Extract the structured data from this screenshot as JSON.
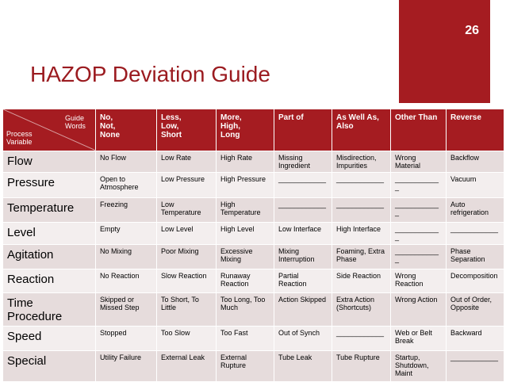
{
  "slide_number": "26",
  "title": "HAZOP Deviation Guide",
  "table": {
    "header": {
      "guide_words": "Guide Words",
      "process_variable": "Process Variable",
      "columns": [
        "No,\nNot,\nNone",
        "Less,\nLow,\nShort",
        "More,\nHigh,\nLong",
        "Part of",
        "As Well As,\nAlso",
        "Other Than",
        "Reverse"
      ]
    },
    "rows": [
      {
        "label": "Flow",
        "cells": [
          "No Flow",
          "Low Rate",
          "High Rate",
          "Missing Ingredient",
          "Misdirection, Impurities",
          "Wrong Material",
          "Backflow"
        ]
      },
      {
        "label": "Pressure",
        "cells": [
          "Open to Atmosphere",
          "Low Pressure",
          "High Pressure",
          "____________",
          "____________",
          "____________",
          "Vacuum"
        ]
      },
      {
        "label": "Temperature",
        "cells": [
          "Freezing",
          "Low Temperature",
          "High Temperature",
          "____________",
          "____________",
          "____________",
          "Auto refrigeration"
        ]
      },
      {
        "label": "Level",
        "cells": [
          "Empty",
          "Low Level",
          "High Level",
          "Low Interface",
          "High Interface",
          "____________",
          "____________"
        ]
      },
      {
        "label": "Agitation",
        "cells": [
          "No Mixing",
          "Poor Mixing",
          "Excessive Mixing",
          "Mixing Interruption",
          "Foaming, Extra Phase",
          "____________",
          "Phase Separation"
        ]
      },
      {
        "label": "Reaction",
        "cells": [
          "No Reaction",
          "Slow Reaction",
          "Runaway Reaction",
          "Partial Reaction",
          "Side Reaction",
          "Wrong Reaction",
          "Decomposition"
        ]
      },
      {
        "label": "Time Procedure",
        "cells": [
          "Skipped or Missed Step",
          "To Short, To Little",
          "Too Long, Too Much",
          "Action Skipped",
          "Extra Action (Shortcuts)",
          "Wrong Action",
          "Out of Order, Opposite"
        ]
      },
      {
        "label": "Speed",
        "cells": [
          "Stopped",
          "Too Slow",
          "Too Fast",
          "Out of Synch",
          "____________",
          "Web or Belt Break",
          "Backward"
        ]
      },
      {
        "label": "Special",
        "cells": [
          "Utility Failure",
          "External Leak",
          "External Rupture",
          "Tube Leak",
          "Tube Rupture",
          "Startup, Shutdown, Maint",
          "____________"
        ]
      }
    ]
  }
}
